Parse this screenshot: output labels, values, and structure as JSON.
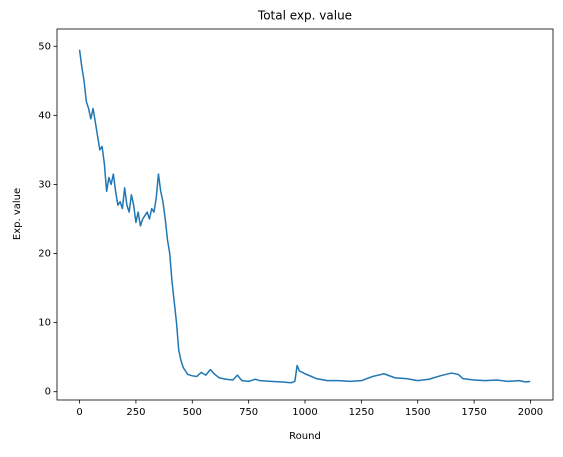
{
  "chart_data": {
    "type": "line",
    "title": "Total exp. value",
    "xlabel": "Round",
    "ylabel": "Exp. value",
    "x": [
      0,
      10,
      20,
      30,
      40,
      50,
      60,
      70,
      80,
      90,
      100,
      110,
      120,
      130,
      140,
      150,
      160,
      170,
      180,
      190,
      200,
      210,
      220,
      230,
      240,
      250,
      260,
      270,
      280,
      290,
      300,
      310,
      320,
      330,
      340,
      350,
      360,
      370,
      380,
      390,
      400,
      410,
      420,
      430,
      440,
      450,
      460,
      470,
      480,
      500,
      520,
      540,
      560,
      580,
      600,
      620,
      650,
      680,
      700,
      720,
      750,
      780,
      800,
      850,
      900,
      940,
      955,
      965,
      975,
      1000,
      1050,
      1100,
      1150,
      1200,
      1250,
      1300,
      1350,
      1400,
      1450,
      1500,
      1550,
      1600,
      1650,
      1680,
      1700,
      1750,
      1800,
      1850,
      1900,
      1950,
      1980,
      1999
    ],
    "series": [
      {
        "name": "Total exp. value",
        "color": "#1f77b4",
        "values": [
          49.5,
          47,
          45,
          42,
          41,
          39.5,
          41,
          39,
          37,
          35,
          35.5,
          33,
          29,
          31,
          30,
          31.5,
          29,
          27,
          27.5,
          26.5,
          29.5,
          27,
          26,
          28.5,
          27,
          24.5,
          26,
          24,
          25,
          25.5,
          26,
          25,
          26.5,
          26,
          28,
          31.5,
          29,
          27.5,
          25,
          22,
          20,
          16,
          13,
          10,
          6,
          4.5,
          3.5,
          3,
          2.5,
          2.3,
          2.2,
          2.8,
          2.4,
          3.2,
          2.5,
          2.0,
          1.8,
          1.7,
          2.4,
          1.6,
          1.5,
          1.8,
          1.6,
          1.5,
          1.4,
          1.3,
          1.5,
          3.8,
          3.0,
          2.6,
          1.9,
          1.6,
          1.6,
          1.5,
          1.6,
          2.2,
          2.6,
          2.0,
          1.9,
          1.6,
          1.8,
          2.3,
          2.7,
          2.5,
          1.9,
          1.7,
          1.6,
          1.7,
          1.5,
          1.6,
          1.4,
          1.5
        ]
      }
    ],
    "xlim": [
      -100,
      2100
    ],
    "xticks": [
      0,
      250,
      500,
      750,
      1000,
      1250,
      1500,
      1750,
      2000
    ],
    "ylim": [
      -1.2,
      52.5
    ],
    "yticks": [
      0,
      10,
      20,
      30,
      40,
      50
    ]
  }
}
